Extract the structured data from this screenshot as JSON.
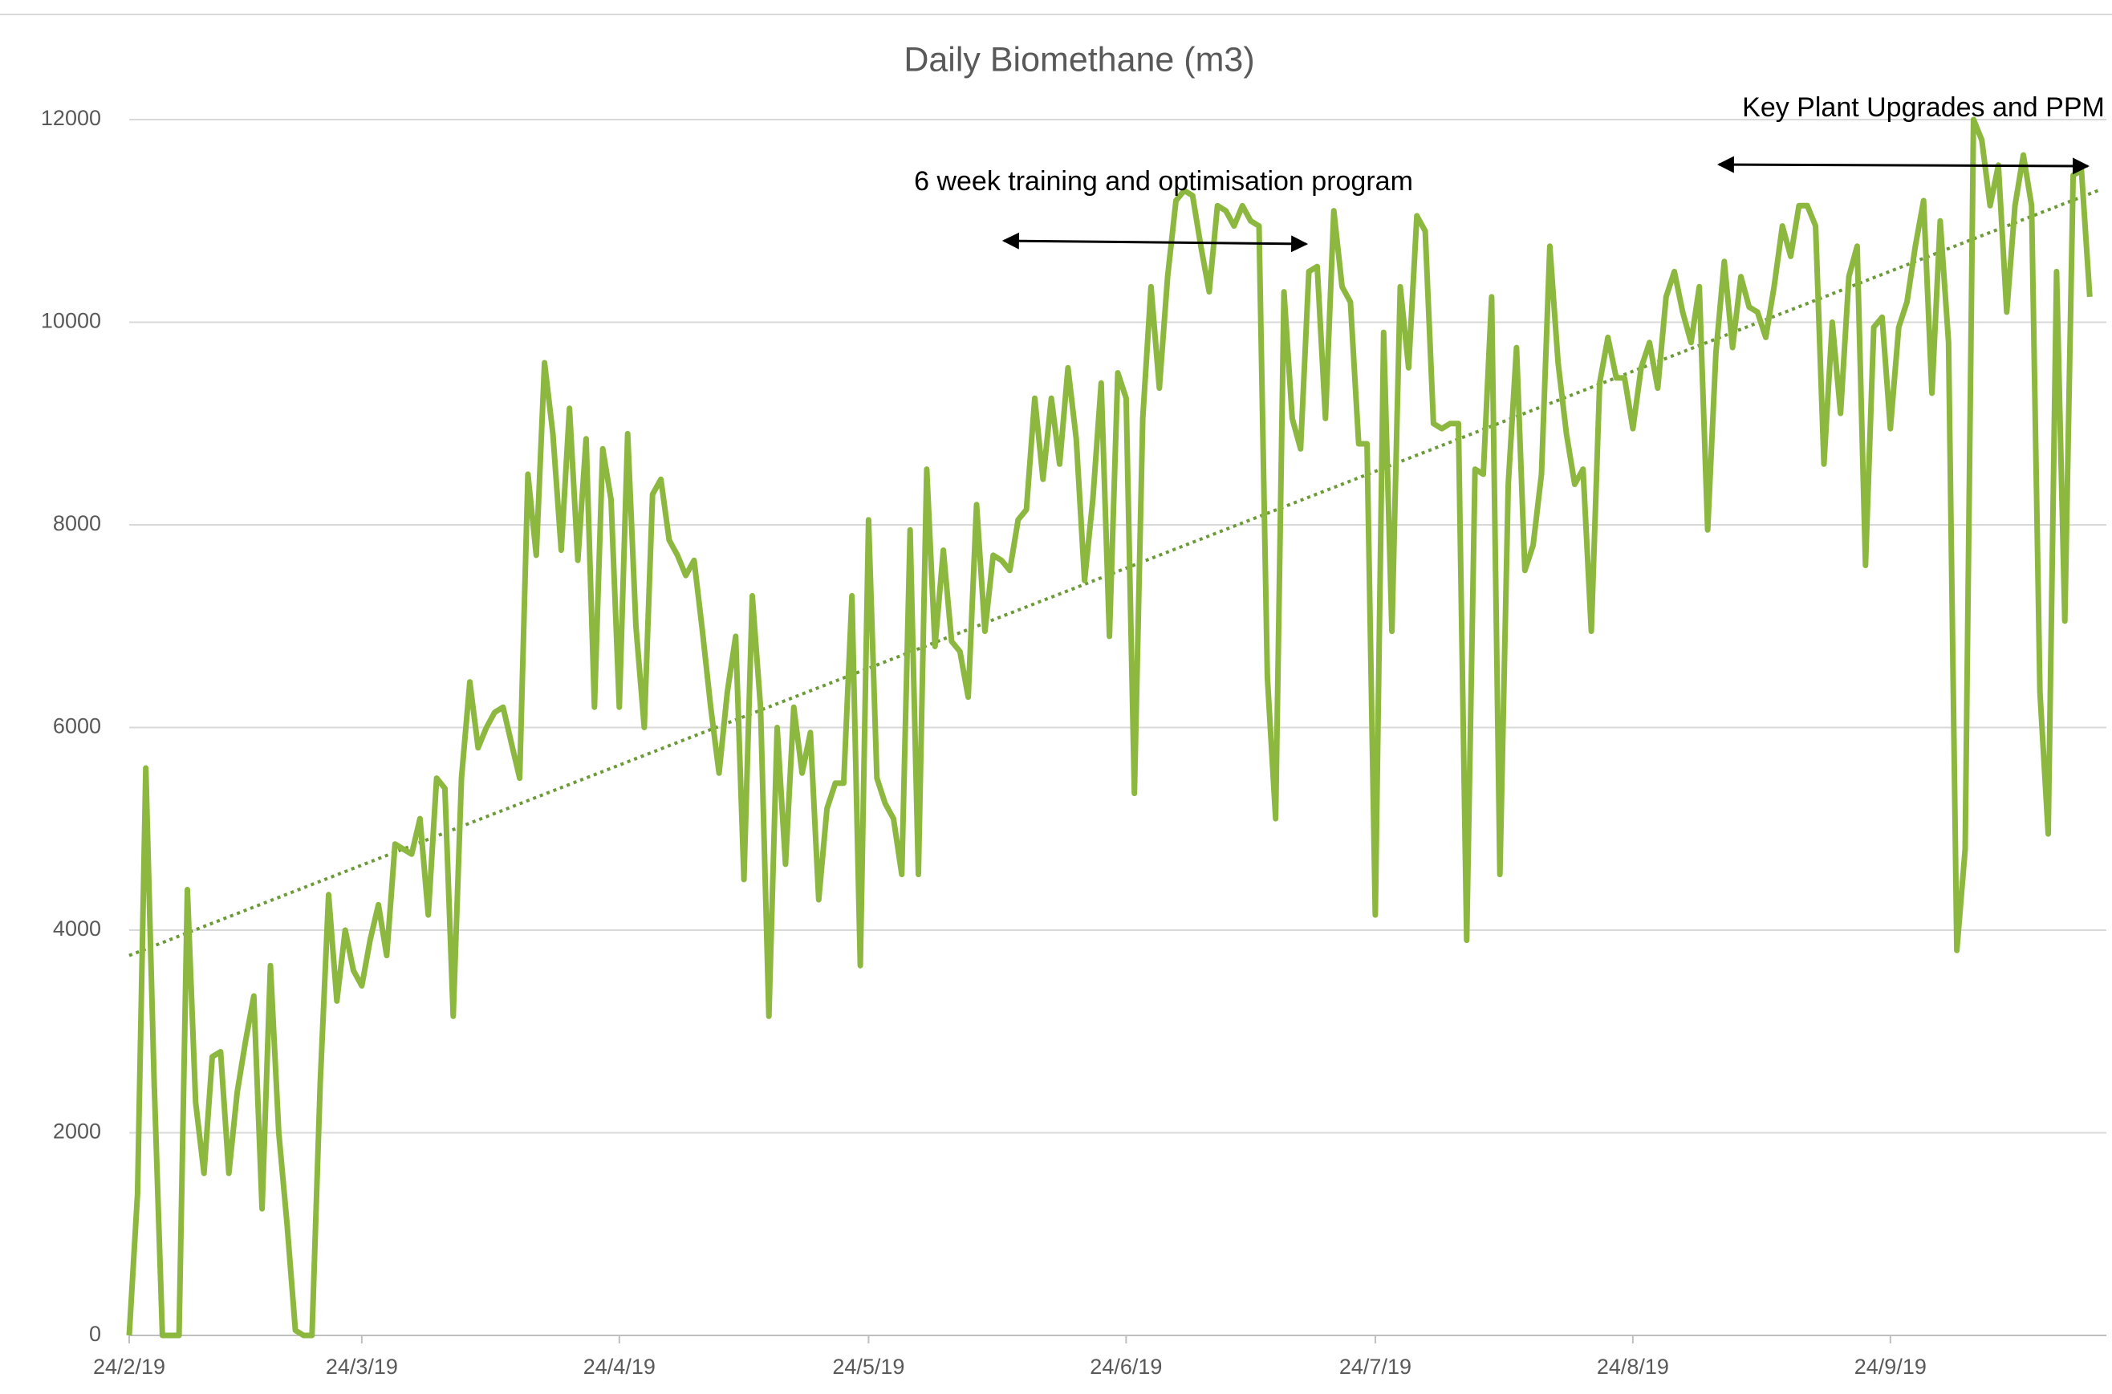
{
  "chart_data": {
    "type": "line",
    "title": "Daily Biomethane (m3)",
    "x": [
      0,
      1,
      2,
      3,
      4,
      5,
      6,
      7,
      8,
      9,
      10,
      11,
      12,
      13,
      14,
      15,
      16,
      17,
      18,
      19,
      20,
      21,
      22,
      23,
      24,
      25,
      26,
      27,
      28,
      29,
      30,
      31,
      32,
      33,
      34,
      35,
      36,
      37,
      38,
      39,
      40,
      41,
      42,
      43,
      44,
      45,
      46,
      47,
      48,
      49,
      50,
      51,
      52,
      53,
      54,
      55,
      56,
      57,
      58,
      59,
      60,
      61,
      62,
      63,
      64,
      65,
      66,
      67,
      68,
      69,
      70,
      71,
      72,
      73,
      74,
      75,
      76,
      77,
      78,
      79,
      80,
      81,
      82,
      83,
      84,
      85,
      86,
      87,
      88,
      89,
      90,
      91,
      92,
      93,
      94,
      95,
      96,
      97,
      98,
      99,
      100,
      101,
      102,
      103,
      104,
      105,
      106,
      107,
      108,
      109,
      110,
      111,
      112,
      113,
      114,
      115,
      116,
      117,
      118,
      119,
      120,
      121,
      122,
      123,
      124,
      125,
      126,
      127,
      128,
      129,
      130,
      131,
      132,
      133,
      134,
      135,
      136,
      137,
      138,
      139,
      140,
      141,
      142,
      143,
      144,
      145,
      146,
      147,
      148,
      149,
      150,
      151,
      152,
      153,
      154,
      155,
      156,
      157,
      158,
      159,
      160,
      161,
      162,
      163,
      164,
      165,
      166,
      167,
      168,
      169,
      170,
      171,
      172,
      173,
      174,
      175,
      176,
      177,
      178,
      179,
      180,
      181,
      182,
      183,
      184,
      185,
      186,
      187,
      188,
      189,
      190,
      191,
      192,
      193,
      194,
      195,
      196,
      197,
      198,
      199,
      200,
      201,
      202,
      203,
      204,
      205,
      206,
      207,
      208,
      209,
      210,
      211,
      212,
      213,
      214,
      215,
      216,
      217,
      218,
      219,
      220,
      221,
      222,
      223,
      224,
      225,
      226,
      227,
      228,
      229,
      230,
      231,
      232,
      233,
      234,
      235,
      236
    ],
    "series": [
      {
        "color": "#8db83f",
        "values": [
          0,
          1400,
          5600,
          2500,
          0,
          0,
          0,
          4400,
          2300,
          1600,
          2750,
          2800,
          1600,
          2400,
          2900,
          3350,
          1250,
          3650,
          2000,
          1100,
          50,
          0,
          0,
          2500,
          4350,
          3300,
          4000,
          3600,
          3450,
          3900,
          4250,
          3750,
          4850,
          4800,
          4750,
          5100,
          4150,
          5500,
          5400,
          3150,
          5500,
          6450,
          5800,
          6000,
          6150,
          6200,
          5850,
          5500,
          8500,
          7700,
          9600,
          8900,
          7750,
          9150,
          7650,
          8850,
          6200,
          8750,
          8250,
          6200,
          8900,
          7000,
          6000,
          8300,
          8450,
          7850,
          7700,
          7500,
          7650,
          6950,
          6200,
          5550,
          6350,
          6900,
          4500,
          7300,
          6200,
          3150,
          6000,
          4650,
          6200,
          5550,
          5950,
          4300,
          5200,
          5450,
          5450,
          7300,
          3650,
          8050,
          5500,
          5250,
          5100,
          4550,
          7950,
          4550,
          8550,
          6800,
          7750,
          6850,
          6750,
          6300,
          8200,
          6950,
          7700,
          7650,
          7550,
          8050,
          8150,
          9250,
          8450,
          9250,
          8600,
          9550,
          8850,
          7450,
          8250,
          9400,
          6900,
          9500,
          9250,
          5350,
          9050,
          10350,
          9350,
          10450,
          11200,
          11300,
          11250,
          10750,
          10300,
          11150,
          11100,
          10950,
          11150,
          11000,
          10950,
          6500,
          5100,
          10300,
          9050,
          8750,
          10500,
          10550,
          9050,
          11100,
          10350,
          10200,
          8800,
          8800,
          4150,
          9900,
          6950,
          10350,
          9550,
          11050,
          10900,
          9000,
          8950,
          9000,
          9000,
          3900,
          8550,
          8500,
          10250,
          4550,
          8400,
          9750,
          7550,
          7800,
          8500,
          10750,
          9600,
          8900,
          8400,
          8550,
          6950,
          9400,
          9850,
          9450,
          9450,
          8950,
          9550,
          9800,
          9350,
          10250,
          10500,
          10100,
          9800,
          10350,
          7950,
          9700,
          10600,
          9750,
          10450,
          10150,
          10100,
          9850,
          10350,
          10950,
          10650,
          11150,
          11150,
          10950,
          8600,
          10000,
          9100,
          10450,
          10750,
          7600,
          9950,
          10050,
          8950,
          9950,
          10200,
          10750,
          11200,
          9300,
          11000,
          9800,
          3800,
          4800,
          12000,
          11800,
          11150,
          11550,
          10100,
          11150,
          11650,
          11150,
          6350,
          4950,
          10500,
          7050,
          11450,
          11500,
          10250
        ]
      }
    ],
    "trendline": {
      "color": "#6b9a37",
      "x": [
        0,
        237
      ],
      "values": [
        3750,
        11300
      ]
    },
    "annotations": [
      {
        "text": "6 week training and optimisation program"
      },
      {
        "text": "Key Plant Upgrades and PPM"
      }
    ],
    "xlim": [
      0,
      238
    ],
    "xticks": [
      {
        "value": 0,
        "label": "24/2/19"
      },
      {
        "value": 28,
        "label": "24/3/19"
      },
      {
        "value": 59,
        "label": "24/4/19"
      },
      {
        "value": 89,
        "label": "24/5/19"
      },
      {
        "value": 120,
        "label": "24/6/19"
      },
      {
        "value": 150,
        "label": "24/7/19"
      },
      {
        "value": 181,
        "label": "24/8/19"
      },
      {
        "value": 212,
        "label": "24/9/19"
      }
    ],
    "ylim": [
      0,
      12000
    ],
    "yticks": [
      0,
      2000,
      4000,
      6000,
      8000,
      10000,
      12000
    ],
    "grid": true
  }
}
